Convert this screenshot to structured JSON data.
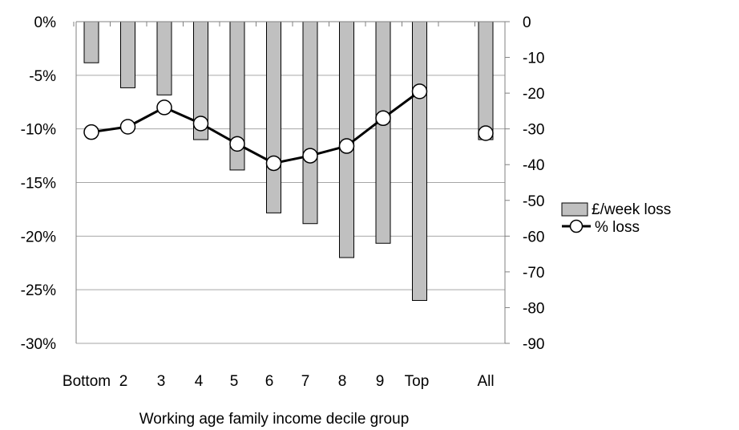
{
  "chart_data": {
    "type": "bar",
    "categories": [
      "Bottom",
      "2",
      "3",
      "4",
      "5",
      "6",
      "7",
      "8",
      "9",
      "Top",
      "All"
    ],
    "xlabel": "Working age family income decile group",
    "series": [
      {
        "name": "£/week loss",
        "type": "bar",
        "axis": "right",
        "values": [
          -11.5,
          -18.5,
          -20.5,
          -33,
          -41.5,
          -53.5,
          -56.5,
          -66,
          -62,
          -78,
          -33
        ]
      },
      {
        "name": "% loss",
        "type": "line",
        "axis": "left",
        "values": [
          -10.3,
          -9.8,
          -8.0,
          -9.5,
          -11.4,
          -13.2,
          -12.5,
          -11.6,
          -9.0,
          -6.5,
          -10.4
        ]
      }
    ],
    "y_left": {
      "ylim": [
        -30,
        0
      ],
      "ticks": [
        0,
        -5,
        -10,
        -15,
        -20,
        -25,
        -30
      ],
      "tick_labels": [
        "0%",
        "-5%",
        "-10%",
        "-15%",
        "-20%",
        "-25%",
        "-30%"
      ]
    },
    "y_right": {
      "ylim": [
        -90,
        0
      ],
      "ticks": [
        0,
        -10,
        -20,
        -30,
        -40,
        -50,
        -60,
        -70,
        -80,
        -90
      ],
      "tick_labels": [
        "0",
        "-10",
        "-20",
        "-30",
        "-40",
        "-50",
        "-60",
        "-70",
        "-80",
        "-90"
      ]
    },
    "grid": true,
    "legend": "right",
    "colors": {
      "bar_fill": "#c0c0c0",
      "bar_stroke": "#000000",
      "line": "#000000",
      "marker_fill": "#ffffff",
      "grid": "#a6a6a6"
    }
  }
}
